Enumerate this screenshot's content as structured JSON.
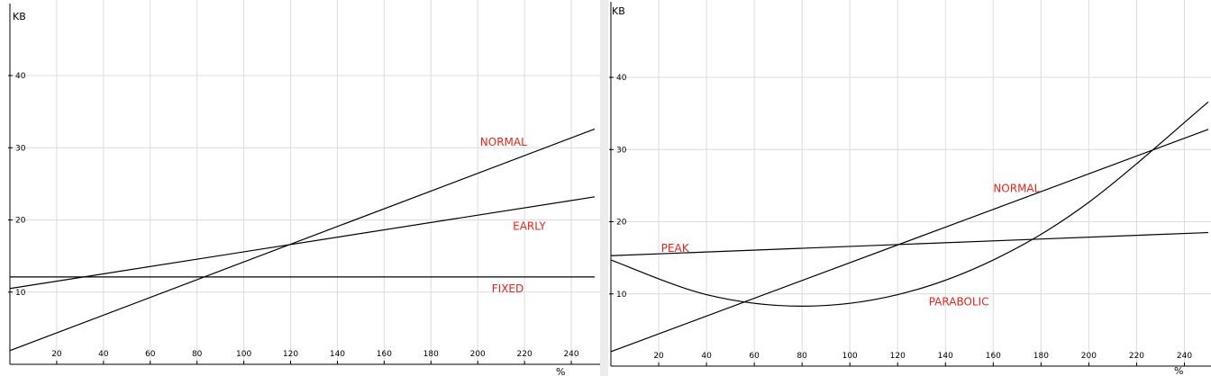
{
  "colors": {
    "background": "#ffffff",
    "grid": "#dcdcdc",
    "line": "#000000",
    "label": "#e8231b"
  },
  "chart_data": [
    {
      "type": "line",
      "ylabel": "KB",
      "xlabel": "%",
      "xlim": [
        0,
        250
      ],
      "ylim": [
        0,
        50
      ],
      "xticks": [
        20,
        40,
        60,
        80,
        100,
        120,
        140,
        160,
        180,
        200,
        220,
        240
      ],
      "yticks": [
        10,
        20,
        30,
        40
      ],
      "grid": true,
      "series": [
        {
          "name": "NORMAL",
          "x": [
            0,
            250
          ],
          "y": [
            1.9,
            32.6
          ]
        },
        {
          "name": "EARLY",
          "x": [
            0,
            250
          ],
          "y": [
            10.5,
            23.2
          ]
        },
        {
          "name": "FIXED",
          "x": [
            0,
            250
          ],
          "y": [
            12.1,
            12.1
          ]
        }
      ],
      "labels": [
        {
          "text": "NORMAL",
          "x": 201,
          "y": 30.3
        },
        {
          "text": "EARLY",
          "x": 215,
          "y": 18.6
        },
        {
          "text": "FIXED",
          "x": 206,
          "y": 10
        }
      ]
    },
    {
      "type": "line",
      "ylabel": "KB",
      "xlabel": "%",
      "xlim": [
        0,
        250
      ],
      "ylim": [
        0,
        50
      ],
      "xticks": [
        20,
        40,
        60,
        80,
        100,
        120,
        140,
        160,
        180,
        200,
        220,
        240
      ],
      "yticks": [
        10,
        20,
        30,
        40
      ],
      "grid": true,
      "series": [
        {
          "name": "NORMAL",
          "x": [
            0,
            250
          ],
          "y": [
            2,
            32.8
          ]
        },
        {
          "name": "PEAK",
          "x": [
            0,
            250
          ],
          "y": [
            15.3,
            18.5
          ]
        },
        {
          "name": "PARABOLIC",
          "x": [
            0,
            40,
            80,
            120,
            160,
            200,
            250
          ],
          "y": [
            14.7,
            9.9,
            8.3,
            9.9,
            14.7,
            22.7,
            36.6
          ]
        }
      ],
      "labels": [
        {
          "text": "NORMAL",
          "x": 160,
          "y": 24.1
        },
        {
          "text": "PEAK",
          "x": 21,
          "y": 15.8
        },
        {
          "text": "PARABOLIC",
          "x": 133,
          "y": 8.4
        }
      ]
    }
  ]
}
